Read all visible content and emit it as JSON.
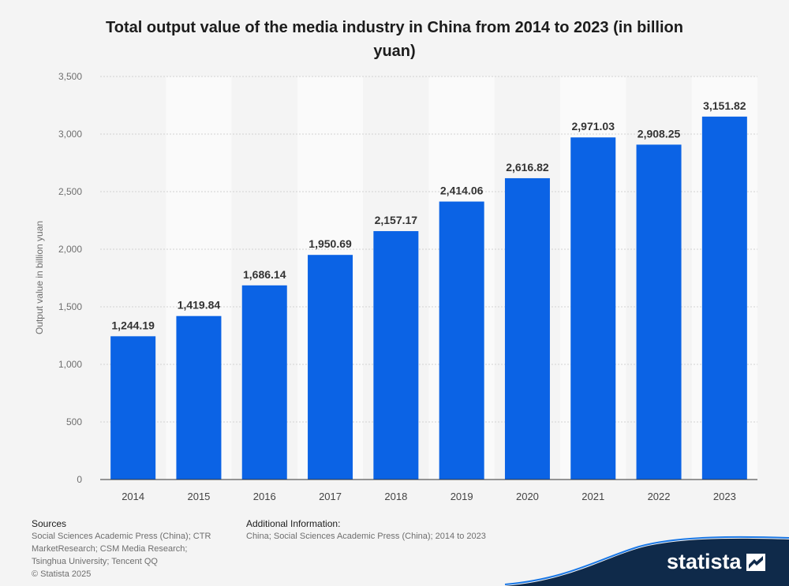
{
  "chart_data": {
    "type": "bar",
    "title": "Total output value of the media industry in China from 2014 to 2023 (in billion yuan)",
    "xlabel": "",
    "ylabel": "Output value in billion yuan",
    "ylim": [
      0,
      3500
    ],
    "yticks": [
      0,
      500,
      1000,
      1500,
      2000,
      2500,
      3000,
      3500
    ],
    "ytick_labels": [
      "0",
      "500",
      "1,000",
      "1,500",
      "2,000",
      "2,500",
      "3,000",
      "3,500"
    ],
    "categories": [
      "2014",
      "2015",
      "2016",
      "2017",
      "2018",
      "2019",
      "2020",
      "2021",
      "2022",
      "2023"
    ],
    "values": [
      1244.19,
      1419.84,
      1686.14,
      1950.69,
      2157.17,
      2414.06,
      2616.82,
      2971.03,
      2908.25,
      3151.82
    ],
    "value_labels": [
      "1,244.19",
      "1,419.84",
      "1,686.14",
      "1,950.69",
      "2,157.17",
      "2,414.06",
      "2,616.82",
      "2,971.03",
      "2,908.25",
      "3,151.82"
    ],
    "grid": true,
    "legend": "none",
    "bar_color": "#0b63e5"
  },
  "footer": {
    "sources_heading": "Sources",
    "sources_lines": [
      "Social Sciences Academic Press (China); CTR",
      "MarketResearch; CSM Media Research;",
      "Tsinghua University; Tencent QQ",
      "© Statista 2025"
    ],
    "info_heading": "Additional Information:",
    "info_text": "China; Social Sciences Academic Press (China); 2014 to 2023"
  },
  "brand": {
    "name": "statista",
    "icon": "statista-logo-icon",
    "wave_color": "#0f2a4a"
  }
}
